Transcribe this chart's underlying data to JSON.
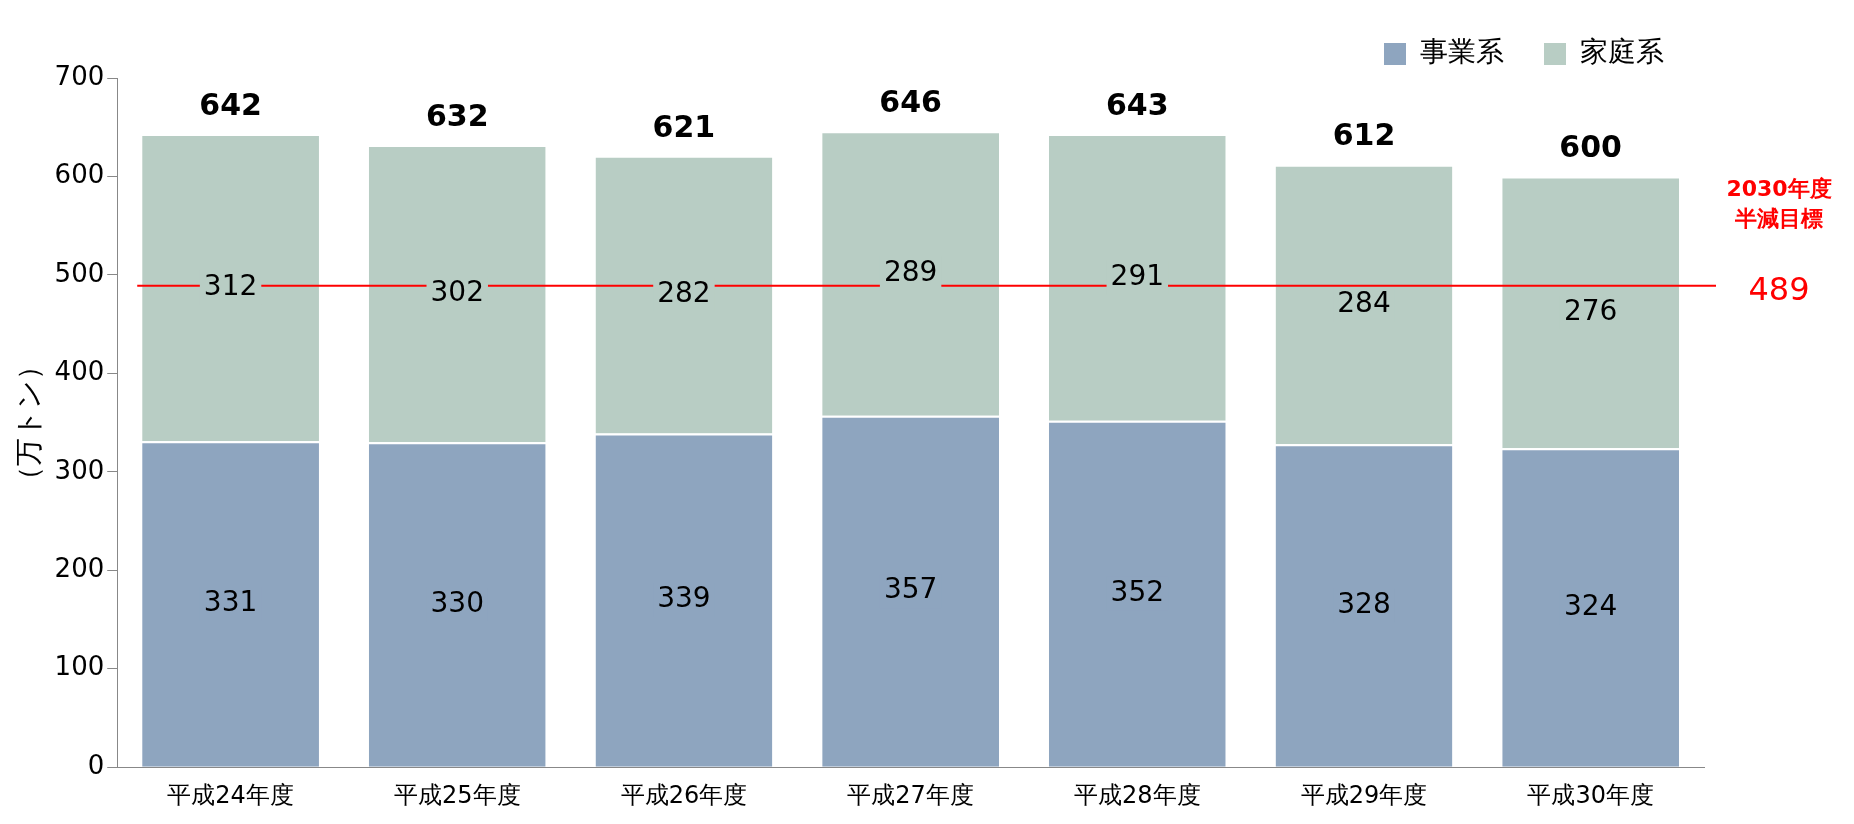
{
  "chart_data": {
    "type": "bar",
    "stacked": true,
    "ylabel": "（万トン）",
    "categories": [
      "平成24年度",
      "平成25年度",
      "平成26年度",
      "平成27年度",
      "平成28年度",
      "平成29年度",
      "平成30年度"
    ],
    "series": [
      {
        "name": "事業系",
        "color": "#8ea5bf",
        "values": [
          331,
          330,
          339,
          357,
          352,
          328,
          324
        ]
      },
      {
        "name": "家庭系",
        "color": "#b8cdc4",
        "values": [
          312,
          302,
          282,
          289,
          291,
          284,
          276
        ]
      }
    ],
    "totals": [
      "642",
      "632",
      "621",
      "646",
      "643",
      "612",
      "600"
    ],
    "data_labels": true,
    "ylim": [
      0,
      700
    ],
    "yticks": [
      0,
      100,
      200,
      300,
      400,
      500,
      600,
      700
    ],
    "grid": false,
    "legend": "top right",
    "ref_lines": [
      {
        "axis": "y",
        "value": 489,
        "label": "489",
        "color": "#ff0000"
      }
    ],
    "annotations": [
      "2030年度半減目標"
    ]
  }
}
